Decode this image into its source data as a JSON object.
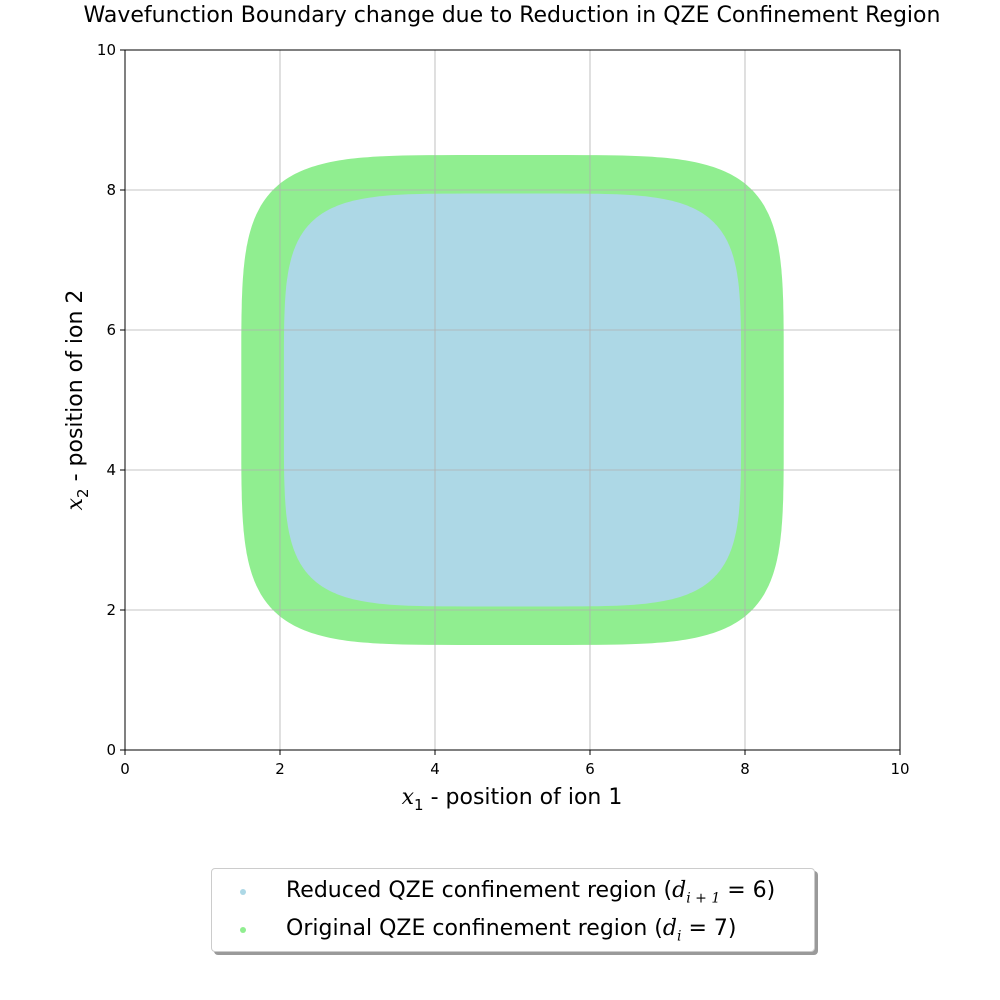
{
  "chart_data": {
    "type": "scatter",
    "title": "Wavefunction Boundary change due to Reduction in QZE Confinement Region",
    "xlabel": "x1 - position of ion 1",
    "ylabel": "x2 - position of ion 2",
    "xlim": [
      0,
      10
    ],
    "ylim": [
      0,
      10
    ],
    "xticks": [
      "0",
      "2",
      "4",
      "6",
      "8",
      "10"
    ],
    "yticks": [
      "0",
      "2",
      "4",
      "6",
      "8",
      "10"
    ],
    "grid": true,
    "legend_position": "below",
    "series": [
      {
        "name": "Original QZE confinement region (d_i = 7)",
        "color": "#90ee90",
        "shape": "superellipse",
        "center": [
          5,
          5
        ],
        "x_range": [
          1.5,
          8.5
        ],
        "y_range": [
          1.5,
          8.5
        ]
      },
      {
        "name": "Reduced QZE confinement region (d_i+1 = 6)",
        "color": "#add8e6",
        "shape": "superellipse",
        "center": [
          5,
          5
        ],
        "x_range": [
          2.05,
          7.95
        ],
        "y_range": [
          2.05,
          7.95
        ]
      }
    ]
  },
  "legend": {
    "reduced_prefix": "Reduced QZE confinement region (",
    "reduced_math_base": "d",
    "reduced_math_sub": "i + 1",
    "reduced_math_rest": " = 6",
    "reduced_suffix": ")",
    "original_prefix": "Original QZE confinement region (",
    "original_math_base": "d",
    "original_math_sub": "i",
    "original_math_rest": " = 7",
    "original_suffix": ")"
  }
}
